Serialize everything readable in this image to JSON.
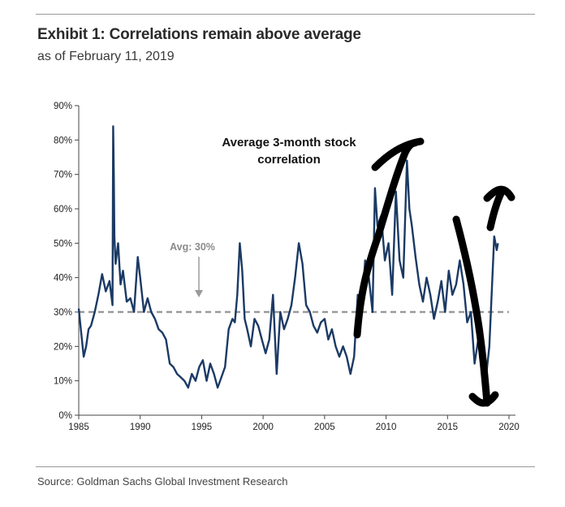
{
  "header": {
    "title": "Exhibit 1: Correlations remain above average",
    "subtitle": "as of February 11, 2019"
  },
  "footer": {
    "source": "Source: Goldman Sachs Global Investment Research"
  },
  "colors": {
    "series": "#1b3a64",
    "average_line": "#9a9a9a",
    "annotation_ink": "#000000"
  },
  "chart_data": {
    "type": "line",
    "title": "Exhibit 1: Correlations remain above average",
    "subtitle": "as of February 11, 2019",
    "xlabel": "",
    "ylabel": "",
    "xlim": [
      1985,
      2020
    ],
    "ylim": [
      0,
      90
    ],
    "x_ticks": [
      "1985",
      "1990",
      "1995",
      "2000",
      "2005",
      "2010",
      "2015",
      "2020"
    ],
    "y_ticks": [
      "0%",
      "10%",
      "20%",
      "30%",
      "40%",
      "50%",
      "60%",
      "70%",
      "80%",
      "90%"
    ],
    "annotation": "Average 3-month stock correlation",
    "average": {
      "label": "Avg: 30%",
      "value": 30
    },
    "grid": false,
    "series": [
      {
        "name": "Average 3-month stock correlation",
        "x": [
          1985.0,
          1985.2,
          1985.4,
          1985.6,
          1985.8,
          1986.0,
          1986.3,
          1986.6,
          1986.9,
          1987.2,
          1987.5,
          1987.75,
          1987.8,
          1987.85,
          1987.9,
          1988.0,
          1988.2,
          1988.4,
          1988.6,
          1988.9,
          1989.2,
          1989.5,
          1989.8,
          1990.0,
          1990.3,
          1990.6,
          1990.9,
          1991.2,
          1991.5,
          1991.8,
          1992.1,
          1992.4,
          1992.7,
          1993.0,
          1993.3,
          1993.6,
          1993.9,
          1994.2,
          1994.5,
          1994.8,
          1995.1,
          1995.4,
          1995.7,
          1996.0,
          1996.3,
          1996.6,
          1996.9,
          1997.2,
          1997.5,
          1997.7,
          1997.9,
          1998.1,
          1998.3,
          1998.5,
          1998.7,
          1999.0,
          1999.3,
          1999.6,
          1999.9,
          2000.2,
          2000.5,
          2000.8,
          2001.1,
          2001.4,
          2001.7,
          2002.0,
          2002.3,
          2002.6,
          2002.9,
          2003.2,
          2003.5,
          2003.8,
          2004.1,
          2004.4,
          2004.7,
          2005.0,
          2005.3,
          2005.6,
          2005.9,
          2006.2,
          2006.5,
          2006.8,
          2007.1,
          2007.4,
          2007.7,
          2008.0,
          2008.3,
          2008.6,
          2008.9,
          2009.1,
          2009.3,
          2009.6,
          2009.9,
          2010.2,
          2010.5,
          2010.8,
          2011.1,
          2011.4,
          2011.7,
          2011.9,
          2012.1,
          2012.4,
          2012.7,
          2013.0,
          2013.3,
          2013.6,
          2013.9,
          2014.2,
          2014.5,
          2014.8,
          2015.1,
          2015.4,
          2015.7,
          2016.0,
          2016.3,
          2016.6,
          2016.9,
          2017.2,
          2017.5,
          2017.8,
          2018.1,
          2018.4,
          2018.6,
          2018.8,
          2019.0,
          2019.1
        ],
        "values": [
          31,
          24,
          17,
          20,
          25,
          26,
          30,
          35,
          41,
          36,
          39,
          32,
          84,
          70,
          52,
          44,
          50,
          38,
          42,
          33,
          34,
          30,
          46,
          40,
          30,
          34,
          30,
          28,
          25,
          24,
          22,
          15,
          14,
          12,
          11,
          10,
          8,
          12,
          10,
          14,
          16,
          10,
          15,
          12,
          8,
          11,
          14,
          25,
          28,
          27,
          35,
          50,
          42,
          28,
          25,
          20,
          28,
          26,
          22,
          18,
          22,
          35,
          12,
          30,
          25,
          28,
          32,
          40,
          50,
          44,
          32,
          30,
          26,
          24,
          27,
          28,
          22,
          25,
          20,
          17,
          20,
          17,
          12,
          17,
          35,
          29,
          45,
          40,
          30,
          66,
          55,
          58,
          45,
          50,
          35,
          65,
          45,
          40,
          74,
          60,
          55,
          46,
          38,
          33,
          40,
          35,
          28,
          33,
          39,
          30,
          42,
          35,
          38,
          45,
          38,
          27,
          30,
          15,
          22,
          25,
          10,
          20,
          36,
          52,
          48,
          50
        ]
      }
    ]
  }
}
